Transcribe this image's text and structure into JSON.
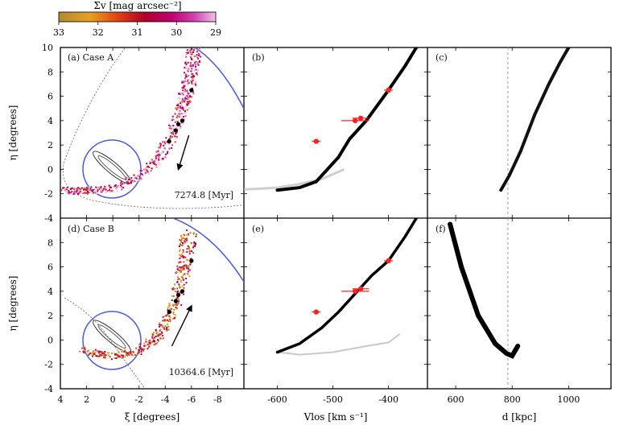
{
  "figure": {
    "colorbar": {
      "title": "Σv [mag arcsec⁻²]",
      "ticks": [
        "33",
        "32",
        "31",
        "30",
        "29"
      ],
      "colors": [
        "#b08a30",
        "#e8a020",
        "#e04010",
        "#b0002a",
        "#c00070",
        "#d040b0",
        "#f0c0e8"
      ]
    },
    "axis_labels": {
      "eta": "η [degrees]",
      "xi": "ξ [degrees]",
      "vlos": "Vlos [km s⁻¹]",
      "d": "d [kpc]"
    },
    "ticks": {
      "eta": [
        "10",
        "8",
        "6",
        "4",
        "2",
        "0",
        "-2",
        "-4"
      ],
      "eta_lower": [
        "8",
        "6",
        "4",
        "2",
        "0",
        "-2",
        "-4"
      ],
      "xi": [
        "4",
        "2",
        "0",
        "-2",
        "-4",
        "-6",
        "-8"
      ],
      "vlos": [
        "-600",
        "-500",
        "-400"
      ],
      "d": [
        "600",
        "800",
        "1000"
      ]
    },
    "panels": {
      "a": {
        "label": "(a) Case A",
        "time": "7274.8 [Myr]"
      },
      "b": {
        "label": "(b)"
      },
      "c": {
        "label": "(c)"
      },
      "d": {
        "label": "(d) Case B",
        "time": "10364.6 [Myr]"
      },
      "e": {
        "label": "(e)"
      },
      "f": {
        "label": "(f)"
      }
    }
  },
  "chart_data": [
    {
      "type": "scatter",
      "panel": "a",
      "xlabel": "ξ [degrees]",
      "ylabel": "η [degrees]",
      "xlim": [
        4,
        -10
      ],
      "ylim": [
        -4,
        10
      ],
      "stream": {
        "xi": [
          3.8,
          2.0,
          0.0,
          -2.0,
          -3.5,
          -4.5,
          -5.2,
          -5.6,
          -6.0,
          -6.2
        ],
        "eta": [
          -1.7,
          -1.7,
          -1.5,
          -0.5,
          1.0,
          3.0,
          5.0,
          6.5,
          8.5,
          10.0
        ]
      },
      "observed_fields": {
        "xi": [
          -4.3,
          -4.8,
          -5.0,
          -5.3,
          -6.0
        ],
        "eta": [
          2.3,
          3.2,
          3.7,
          4.0,
          6.5
        ]
      },
      "orbit_arrow": {
        "from": [
          -5.8,
          2.8
        ],
        "to": [
          -5.0,
          0.0
        ]
      }
    },
    {
      "type": "scatter",
      "panel": "b",
      "xlabel": "Vlos [km s⁻¹]",
      "ylabel": "η [degrees]",
      "xlim": [
        -660,
        -330
      ],
      "ylim": [
        -4,
        10
      ],
      "stream": {
        "v": [
          -600,
          -560,
          -530,
          -490,
          -470,
          -440,
          -400,
          -370,
          -350
        ],
        "eta": [
          -1.7,
          -1.5,
          -1.0,
          1.0,
          2.5,
          4.0,
          6.5,
          8.5,
          10.0
        ]
      },
      "observed": {
        "v": [
          -530,
          -460,
          -450,
          -400
        ],
        "eta": [
          2.3,
          4.0,
          4.2,
          6.5
        ],
        "v_err": [
          8,
          25,
          15,
          8
        ]
      }
    },
    {
      "type": "scatter",
      "panel": "c",
      "xlabel": "d [kpc]",
      "ylabel": "η [degrees]",
      "xlim": [
        500,
        1150
      ],
      "ylim": [
        -4,
        10
      ],
      "stream": {
        "d": [
          760,
          790,
          830,
          880,
          930,
          970,
          1000
        ],
        "eta": [
          -1.7,
          -0.5,
          1.5,
          4.5,
          7.0,
          8.8,
          10.0
        ]
      },
      "reference_d": 785
    },
    {
      "type": "scatter",
      "panel": "d",
      "xlabel": "ξ [degrees]",
      "ylabel": "η [degrees]",
      "xlim": [
        4,
        -10
      ],
      "ylim": [
        -4,
        10
      ],
      "stream": {
        "xi": [
          2.5,
          0.0,
          -2.0,
          -3.5,
          -4.5,
          -5.2,
          -5.5,
          -5.8
        ],
        "eta": [
          -0.8,
          -1.3,
          -0.8,
          0.5,
          2.5,
          5.0,
          7.0,
          9.0
        ]
      },
      "observed_fields": {
        "xi": [
          -4.3,
          -4.8,
          -5.0,
          -5.3,
          -6.0
        ],
        "eta": [
          2.3,
          3.2,
          3.7,
          4.0,
          6.5
        ]
      },
      "orbit_arrow": {
        "from": [
          -4.5,
          -0.5
        ],
        "to": [
          -6.0,
          2.8
        ]
      }
    },
    {
      "type": "scatter",
      "panel": "e",
      "xlabel": "Vlos [km s⁻¹]",
      "ylabel": "η [degrees]",
      "xlim": [
        -660,
        -330
      ],
      "ylim": [
        -4,
        10
      ],
      "stream": {
        "v": [
          -600,
          -560,
          -520,
          -490,
          -460,
          -430,
          -400,
          -370,
          -350
        ],
        "eta": [
          -1.0,
          -0.3,
          1.0,
          2.3,
          3.8,
          5.3,
          6.5,
          8.5,
          10.0
        ]
      },
      "observed": {
        "v": [
          -530,
          -460,
          -450,
          -400
        ],
        "eta": [
          2.3,
          4.0,
          4.2,
          6.5
        ],
        "v_err": [
          8,
          25,
          15,
          8
        ]
      }
    },
    {
      "type": "scatter",
      "panel": "f",
      "xlabel": "d [kpc]",
      "ylabel": "η [degrees]",
      "xlim": [
        500,
        1150
      ],
      "ylim": [
        -4,
        10
      ],
      "stream": {
        "d": [
          580,
          620,
          680,
          740,
          780,
          800,
          820
        ],
        "eta": [
          9.5,
          6.0,
          2.0,
          -0.3,
          -1.1,
          -1.3,
          -0.5
        ]
      },
      "reference_d": 785
    }
  ]
}
